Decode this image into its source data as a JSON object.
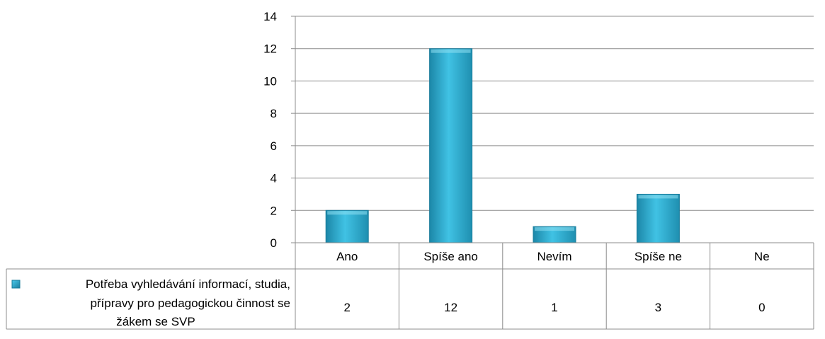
{
  "chart_data": {
    "type": "bar",
    "categories": [
      "Ano",
      "Spíše ano",
      "Nevím",
      "Spíše ne",
      "Ne"
    ],
    "series": [
      {
        "name": "Potřeba vyhledávání informací, studia, přípravy pro pedagogickou činnost se žákem se SVP",
        "name_lines": [
          "Potřeba vyhledávání informací, studia,",
          "přípravy pro pedagogickou činnost se",
          "žákem se SVP"
        ],
        "values": [
          2,
          12,
          1,
          3,
          0
        ],
        "value_labels": [
          "2",
          "12",
          "1",
          "3",
          "0"
        ],
        "color": "#31b5d9"
      }
    ],
    "y_ticks": [
      "0",
      "2",
      "4",
      "6",
      "8",
      "10",
      "12",
      "14"
    ],
    "ylim": [
      0,
      14
    ],
    "y_step": 2,
    "grid": true,
    "legend": "data-table-left",
    "data_table": true
  }
}
